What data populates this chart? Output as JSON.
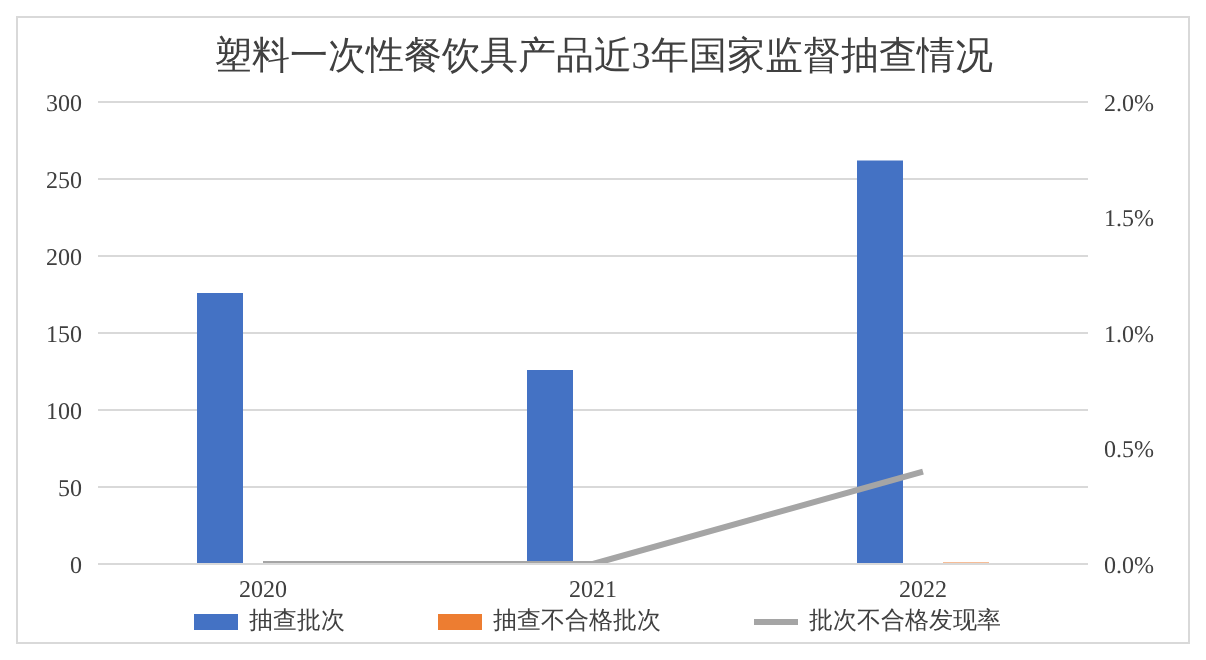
{
  "chart_data": {
    "type": "bar",
    "title": "塑料一次性餐饮具产品近3年国家监督抽查情况",
    "categories": [
      "2020",
      "2021",
      "2022"
    ],
    "series": [
      {
        "name": "抽查批次",
        "color": "#4472c4",
        "values": [
          176,
          126,
          262
        ]
      },
      {
        "name": "抽查不合格批次",
        "color": "#ed7d31",
        "values": [
          0,
          0,
          1
        ]
      },
      {
        "name": "批次不合格发现率",
        "type": "line",
        "axis": "y2",
        "color": "#a5a5a5",
        "values": [
          0,
          0,
          0.4
        ]
      }
    ],
    "ylim": [
      0,
      300
    ],
    "yticks": [
      0,
      50,
      100,
      150,
      200,
      250,
      300
    ],
    "y2lim": [
      0,
      2
    ],
    "y2ticks": [
      {
        "value": 0,
        "label": "0.0%"
      },
      {
        "value": 0.5,
        "label": "0.5%"
      },
      {
        "value": 1,
        "label": "1.0%"
      },
      {
        "value": 1.5,
        "label": "1.5%"
      },
      {
        "value": 2,
        "label": "2.0%"
      }
    ],
    "grid": "y",
    "legend": "bottom",
    "marker": "none"
  }
}
